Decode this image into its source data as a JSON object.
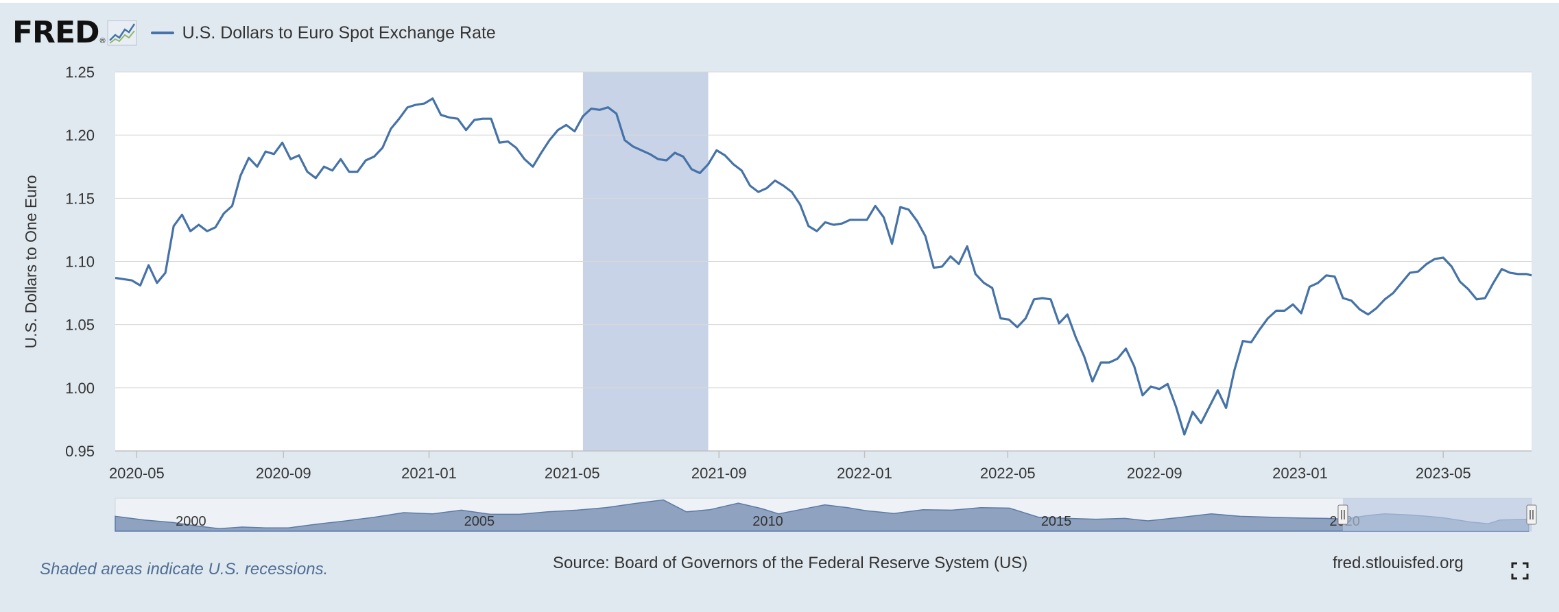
{
  "header": {
    "logo_text": "FRED",
    "logo_mark": "®",
    "logo_icon": "line-graph-icon",
    "series_label": "U.S. Dollars to Euro Spot Exchange Rate"
  },
  "footer": {
    "recession_note": "Shaded areas indicate U.S. recessions.",
    "source": "Source: Board of Governors of the Federal Reserve System (US)",
    "site": "fred.stlouisfed.org",
    "fullscreen_icon": "fullscreen-icon"
  },
  "colors": {
    "background": "#e1e9f0",
    "plot_background": "#ffffff",
    "series_line": "#4572a7",
    "recession_band": "#c8d3e8",
    "navigator_fill": "#8fa3c0",
    "navigator_selection": "#b9c8e0"
  },
  "chart_data": {
    "type": "line",
    "title": "",
    "xlabel": "",
    "ylabel": "U.S. Dollars to One Euro",
    "x_range": [
      "2020-04-13",
      "2023-07-14"
    ],
    "ylim": [
      0.95,
      1.25
    ],
    "y_ticks": [
      0.95,
      1.0,
      1.05,
      1.1,
      1.15,
      1.2,
      1.25
    ],
    "y_tick_labels": [
      "0.95",
      "1.00",
      "1.05",
      "1.10",
      "1.15",
      "1.20",
      "1.25"
    ],
    "x_ticks": [
      "2020-05-01",
      "2020-09-01",
      "2021-01-01",
      "2021-05-01",
      "2021-09-01",
      "2022-01-01",
      "2022-05-01",
      "2022-09-01",
      "2023-01-01",
      "2023-05-01"
    ],
    "x_tick_labels": [
      "2020-05",
      "2020-09",
      "2021-01",
      "2021-05",
      "2021-09",
      "2022-01",
      "2022-05",
      "2022-09",
      "2023-01",
      "2023-05"
    ],
    "grid": true,
    "legend": "top-left",
    "recessions": [
      {
        "start": "2021-05-10",
        "end": "2021-08-23"
      }
    ],
    "series": [
      {
        "name": "U.S. Dollars to Euro Spot Exchange Rate",
        "points": [
          [
            "2020-04-13",
            1.087
          ],
          [
            "2020-04-20",
            1.086
          ],
          [
            "2020-04-27",
            1.085
          ],
          [
            "2020-05-04",
            1.081
          ],
          [
            "2020-05-11",
            1.097
          ],
          [
            "2020-05-18",
            1.083
          ],
          [
            "2020-05-25",
            1.091
          ],
          [
            "2020-06-01",
            1.128
          ],
          [
            "2020-06-08",
            1.137
          ],
          [
            "2020-06-15",
            1.124
          ],
          [
            "2020-06-22",
            1.129
          ],
          [
            "2020-06-29",
            1.124
          ],
          [
            "2020-07-06",
            1.127
          ],
          [
            "2020-07-13",
            1.138
          ],
          [
            "2020-07-20",
            1.144
          ],
          [
            "2020-07-27",
            1.168
          ],
          [
            "2020-08-03",
            1.182
          ],
          [
            "2020-08-10",
            1.175
          ],
          [
            "2020-08-17",
            1.187
          ],
          [
            "2020-08-24",
            1.185
          ],
          [
            "2020-08-31",
            1.194
          ],
          [
            "2020-09-07",
            1.181
          ],
          [
            "2020-09-14",
            1.184
          ],
          [
            "2020-09-21",
            1.171
          ],
          [
            "2020-09-28",
            1.166
          ],
          [
            "2020-10-05",
            1.175
          ],
          [
            "2020-10-12",
            1.172
          ],
          [
            "2020-10-19",
            1.181
          ],
          [
            "2020-10-26",
            1.171
          ],
          [
            "2020-11-02",
            1.171
          ],
          [
            "2020-11-09",
            1.18
          ],
          [
            "2020-11-16",
            1.183
          ],
          [
            "2020-11-23",
            1.19
          ],
          [
            "2020-11-30",
            1.205
          ],
          [
            "2020-12-07",
            1.213
          ],
          [
            "2020-12-14",
            1.222
          ],
          [
            "2020-12-21",
            1.224
          ],
          [
            "2020-12-28",
            1.225
          ],
          [
            "2021-01-04",
            1.229
          ],
          [
            "2021-01-11",
            1.216
          ],
          [
            "2021-01-18",
            1.214
          ],
          [
            "2021-01-25",
            1.213
          ],
          [
            "2021-02-01",
            1.204
          ],
          [
            "2021-02-08",
            1.212
          ],
          [
            "2021-02-15",
            1.213
          ],
          [
            "2021-02-22",
            1.213
          ],
          [
            "2021-03-01",
            1.194
          ],
          [
            "2021-03-08",
            1.195
          ],
          [
            "2021-03-15",
            1.19
          ],
          [
            "2021-03-22",
            1.181
          ],
          [
            "2021-03-29",
            1.175
          ],
          [
            "2021-04-05",
            1.186
          ],
          [
            "2021-04-12",
            1.196
          ],
          [
            "2021-04-19",
            1.204
          ],
          [
            "2021-04-26",
            1.208
          ],
          [
            "2021-05-03",
            1.203
          ],
          [
            "2021-05-10",
            1.215
          ],
          [
            "2021-05-17",
            1.221
          ],
          [
            "2021-05-24",
            1.22
          ],
          [
            "2021-05-31",
            1.222
          ],
          [
            "2021-06-07",
            1.217
          ],
          [
            "2021-06-14",
            1.196
          ],
          [
            "2021-06-21",
            1.191
          ],
          [
            "2021-06-28",
            1.188
          ],
          [
            "2021-07-05",
            1.185
          ],
          [
            "2021-07-12",
            1.181
          ],
          [
            "2021-07-19",
            1.18
          ],
          [
            "2021-07-26",
            1.186
          ],
          [
            "2021-08-02",
            1.183
          ],
          [
            "2021-08-09",
            1.173
          ],
          [
            "2021-08-16",
            1.17
          ],
          [
            "2021-08-23",
            1.177
          ],
          [
            "2021-08-30",
            1.188
          ],
          [
            "2021-09-06",
            1.184
          ],
          [
            "2021-09-13",
            1.177
          ],
          [
            "2021-09-20",
            1.172
          ],
          [
            "2021-09-27",
            1.16
          ],
          [
            "2021-10-04",
            1.155
          ],
          [
            "2021-10-11",
            1.158
          ],
          [
            "2021-10-18",
            1.164
          ],
          [
            "2021-10-25",
            1.16
          ],
          [
            "2021-11-01",
            1.155
          ],
          [
            "2021-11-08",
            1.145
          ],
          [
            "2021-11-15",
            1.128
          ],
          [
            "2021-11-22",
            1.124
          ],
          [
            "2021-11-29",
            1.131
          ],
          [
            "2021-12-06",
            1.129
          ],
          [
            "2021-12-13",
            1.13
          ],
          [
            "2021-12-20",
            1.133
          ],
          [
            "2021-12-27",
            1.133
          ],
          [
            "2022-01-03",
            1.133
          ],
          [
            "2022-01-10",
            1.144
          ],
          [
            "2022-01-17",
            1.135
          ],
          [
            "2022-01-24",
            1.114
          ],
          [
            "2022-01-31",
            1.143
          ],
          [
            "2022-02-07",
            1.141
          ],
          [
            "2022-02-14",
            1.132
          ],
          [
            "2022-02-21",
            1.12
          ],
          [
            "2022-02-28",
            1.095
          ],
          [
            "2022-03-07",
            1.096
          ],
          [
            "2022-03-14",
            1.104
          ],
          [
            "2022-03-21",
            1.098
          ],
          [
            "2022-03-28",
            1.112
          ],
          [
            "2022-04-04",
            1.09
          ],
          [
            "2022-04-11",
            1.083
          ],
          [
            "2022-04-18",
            1.079
          ],
          [
            "2022-04-25",
            1.055
          ],
          [
            "2022-05-02",
            1.054
          ],
          [
            "2022-05-09",
            1.048
          ],
          [
            "2022-05-16",
            1.055
          ],
          [
            "2022-05-23",
            1.07
          ],
          [
            "2022-05-30",
            1.071
          ],
          [
            "2022-06-06",
            1.07
          ],
          [
            "2022-06-13",
            1.051
          ],
          [
            "2022-06-20",
            1.058
          ],
          [
            "2022-06-27",
            1.04
          ],
          [
            "2022-07-04",
            1.025
          ],
          [
            "2022-07-11",
            1.005
          ],
          [
            "2022-07-18",
            1.02
          ],
          [
            "2022-07-25",
            1.02
          ],
          [
            "2022-08-01",
            1.023
          ],
          [
            "2022-08-08",
            1.031
          ],
          [
            "2022-08-15",
            1.017
          ],
          [
            "2022-08-22",
            0.994
          ],
          [
            "2022-08-29",
            1.001
          ],
          [
            "2022-09-05",
            0.999
          ],
          [
            "2022-09-12",
            1.003
          ],
          [
            "2022-09-19",
            0.985
          ],
          [
            "2022-09-26",
            0.963
          ],
          [
            "2022-10-03",
            0.981
          ],
          [
            "2022-10-10",
            0.972
          ],
          [
            "2022-10-17",
            0.985
          ],
          [
            "2022-10-24",
            0.998
          ],
          [
            "2022-10-31",
            0.984
          ],
          [
            "2022-11-07",
            1.014
          ],
          [
            "2022-11-14",
            1.037
          ],
          [
            "2022-11-21",
            1.036
          ],
          [
            "2022-11-28",
            1.046
          ],
          [
            "2022-12-05",
            1.055
          ],
          [
            "2022-12-12",
            1.061
          ],
          [
            "2022-12-19",
            1.061
          ],
          [
            "2022-12-26",
            1.066
          ],
          [
            "2023-01-02",
            1.059
          ],
          [
            "2023-01-09",
            1.08
          ],
          [
            "2023-01-16",
            1.083
          ],
          [
            "2023-01-23",
            1.089
          ],
          [
            "2023-01-30",
            1.088
          ],
          [
            "2023-02-06",
            1.071
          ],
          [
            "2023-02-13",
            1.069
          ],
          [
            "2023-02-20",
            1.062
          ],
          [
            "2023-02-27",
            1.058
          ],
          [
            "2023-03-06",
            1.063
          ],
          [
            "2023-03-13",
            1.07
          ],
          [
            "2023-03-20",
            1.075
          ],
          [
            "2023-03-27",
            1.083
          ],
          [
            "2023-04-03",
            1.091
          ],
          [
            "2023-04-10",
            1.092
          ],
          [
            "2023-04-17",
            1.098
          ],
          [
            "2023-04-24",
            1.102
          ],
          [
            "2023-05-01",
            1.103
          ],
          [
            "2023-05-08",
            1.096
          ],
          [
            "2023-05-15",
            1.084
          ],
          [
            "2023-05-22",
            1.078
          ],
          [
            "2023-05-29",
            1.07
          ],
          [
            "2023-06-05",
            1.071
          ],
          [
            "2023-06-12",
            1.083
          ],
          [
            "2023-06-19",
            1.094
          ],
          [
            "2023-06-26",
            1.091
          ],
          [
            "2023-07-03",
            1.09
          ],
          [
            "2023-07-10",
            1.09
          ],
          [
            "2023-07-14",
            1.089
          ]
        ]
      }
    ]
  },
  "navigator": {
    "year_labels": [
      "2000",
      "2005",
      "2010",
      "2015",
      "2020"
    ],
    "series": [
      [
        1999.0,
        1.16
      ],
      [
        1999.5,
        1.07
      ],
      [
        2000.0,
        1.01
      ],
      [
        2000.4,
        0.93
      ],
      [
        2000.8,
        0.86
      ],
      [
        2001.2,
        0.9
      ],
      [
        2001.6,
        0.88
      ],
      [
        2002.0,
        0.88
      ],
      [
        2002.5,
        0.97
      ],
      [
        2003.0,
        1.05
      ],
      [
        2003.5,
        1.14
      ],
      [
        2004.0,
        1.25
      ],
      [
        2004.5,
        1.22
      ],
      [
        2005.0,
        1.31
      ],
      [
        2005.5,
        1.21
      ],
      [
        2006.0,
        1.21
      ],
      [
        2006.5,
        1.27
      ],
      [
        2007.0,
        1.31
      ],
      [
        2007.5,
        1.37
      ],
      [
        2008.0,
        1.47
      ],
      [
        2008.5,
        1.56
      ],
      [
        2008.9,
        1.27
      ],
      [
        2009.3,
        1.32
      ],
      [
        2009.8,
        1.48
      ],
      [
        2010.2,
        1.35
      ],
      [
        2010.5,
        1.22
      ],
      [
        2010.9,
        1.33
      ],
      [
        2011.3,
        1.44
      ],
      [
        2011.7,
        1.37
      ],
      [
        2012.0,
        1.3
      ],
      [
        2012.5,
        1.23
      ],
      [
        2013.0,
        1.32
      ],
      [
        2013.5,
        1.31
      ],
      [
        2014.0,
        1.37
      ],
      [
        2014.5,
        1.36
      ],
      [
        2015.0,
        1.14
      ],
      [
        2015.5,
        1.11
      ],
      [
        2016.0,
        1.09
      ],
      [
        2016.5,
        1.11
      ],
      [
        2016.9,
        1.05
      ],
      [
        2017.5,
        1.14
      ],
      [
        2018.0,
        1.22
      ],
      [
        2018.5,
        1.16
      ],
      [
        2019.0,
        1.14
      ],
      [
        2019.5,
        1.12
      ],
      [
        2020.0,
        1.11
      ],
      [
        2020.3,
        1.09
      ],
      [
        2020.7,
        1.18
      ],
      [
        2021.0,
        1.22
      ],
      [
        2021.5,
        1.19
      ],
      [
        2022.0,
        1.13
      ],
      [
        2022.5,
        1.02
      ],
      [
        2022.8,
        0.98
      ],
      [
        2023.0,
        1.07
      ],
      [
        2023.5,
        1.09
      ]
    ],
    "range": [
      1999.0,
      2023.55
    ],
    "selection": [
      2020.28,
      2023.55
    ]
  }
}
